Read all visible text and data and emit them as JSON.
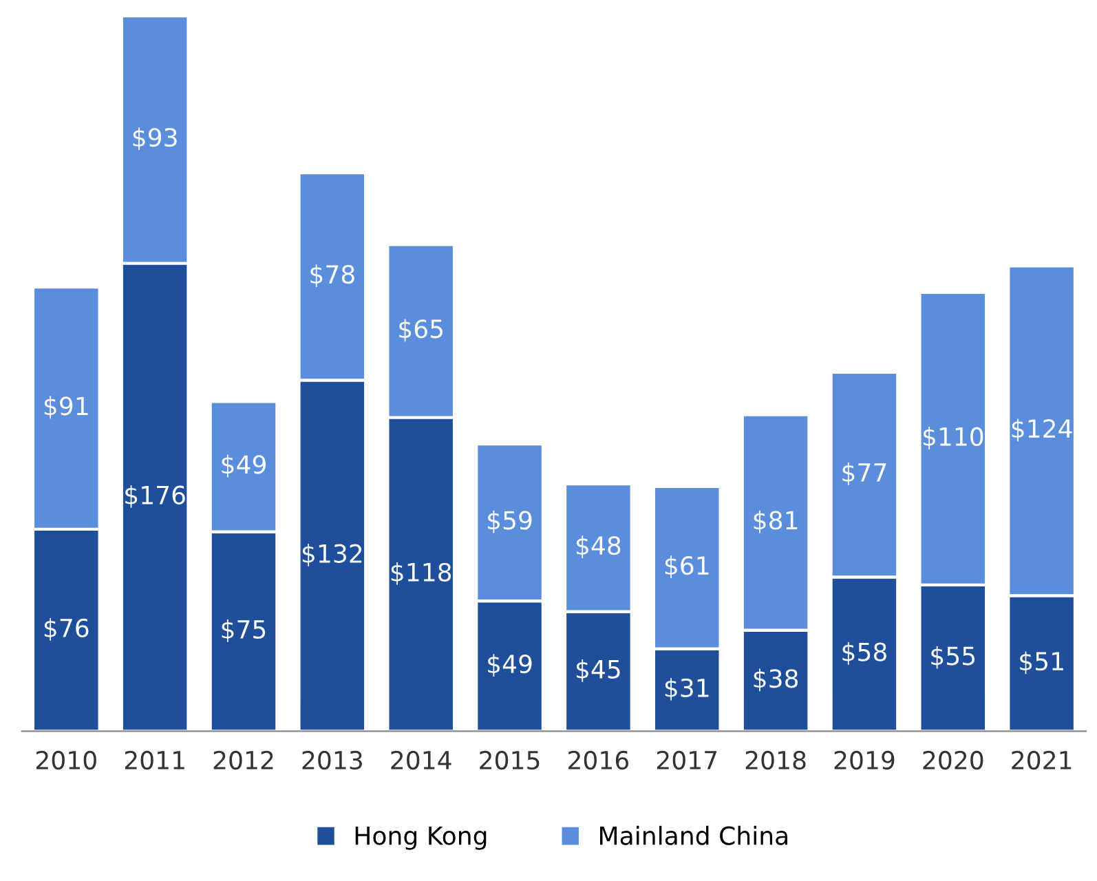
{
  "chart_data": {
    "type": "bar",
    "stacked": true,
    "categories": [
      "2010",
      "2011",
      "2012",
      "2013",
      "2014",
      "2015",
      "2016",
      "2017",
      "2018",
      "2019",
      "2020",
      "2021"
    ],
    "series": [
      {
        "name": "Hong Kong",
        "color": "#1f4e9a",
        "values": [
          76,
          176,
          75,
          132,
          118,
          49,
          45,
          31,
          38,
          58,
          55,
          51
        ],
        "value_labels": [
          "$76",
          "$176",
          "$75",
          "$132",
          "$118",
          "$49",
          "$45",
          "$31",
          "$38",
          "$58",
          "$55",
          "$51"
        ]
      },
      {
        "name": "Mainland China",
        "color": "#5a8ddc",
        "values": [
          91,
          93,
          49,
          78,
          65,
          59,
          48,
          61,
          81,
          77,
          110,
          124
        ],
        "value_labels": [
          "$91",
          "$93",
          "$49",
          "$78",
          "$65",
          "$59",
          "$48",
          "$61",
          "$81",
          "$77",
          "$110",
          "$124"
        ]
      }
    ],
    "legend": "bottom",
    "grid": false
  }
}
